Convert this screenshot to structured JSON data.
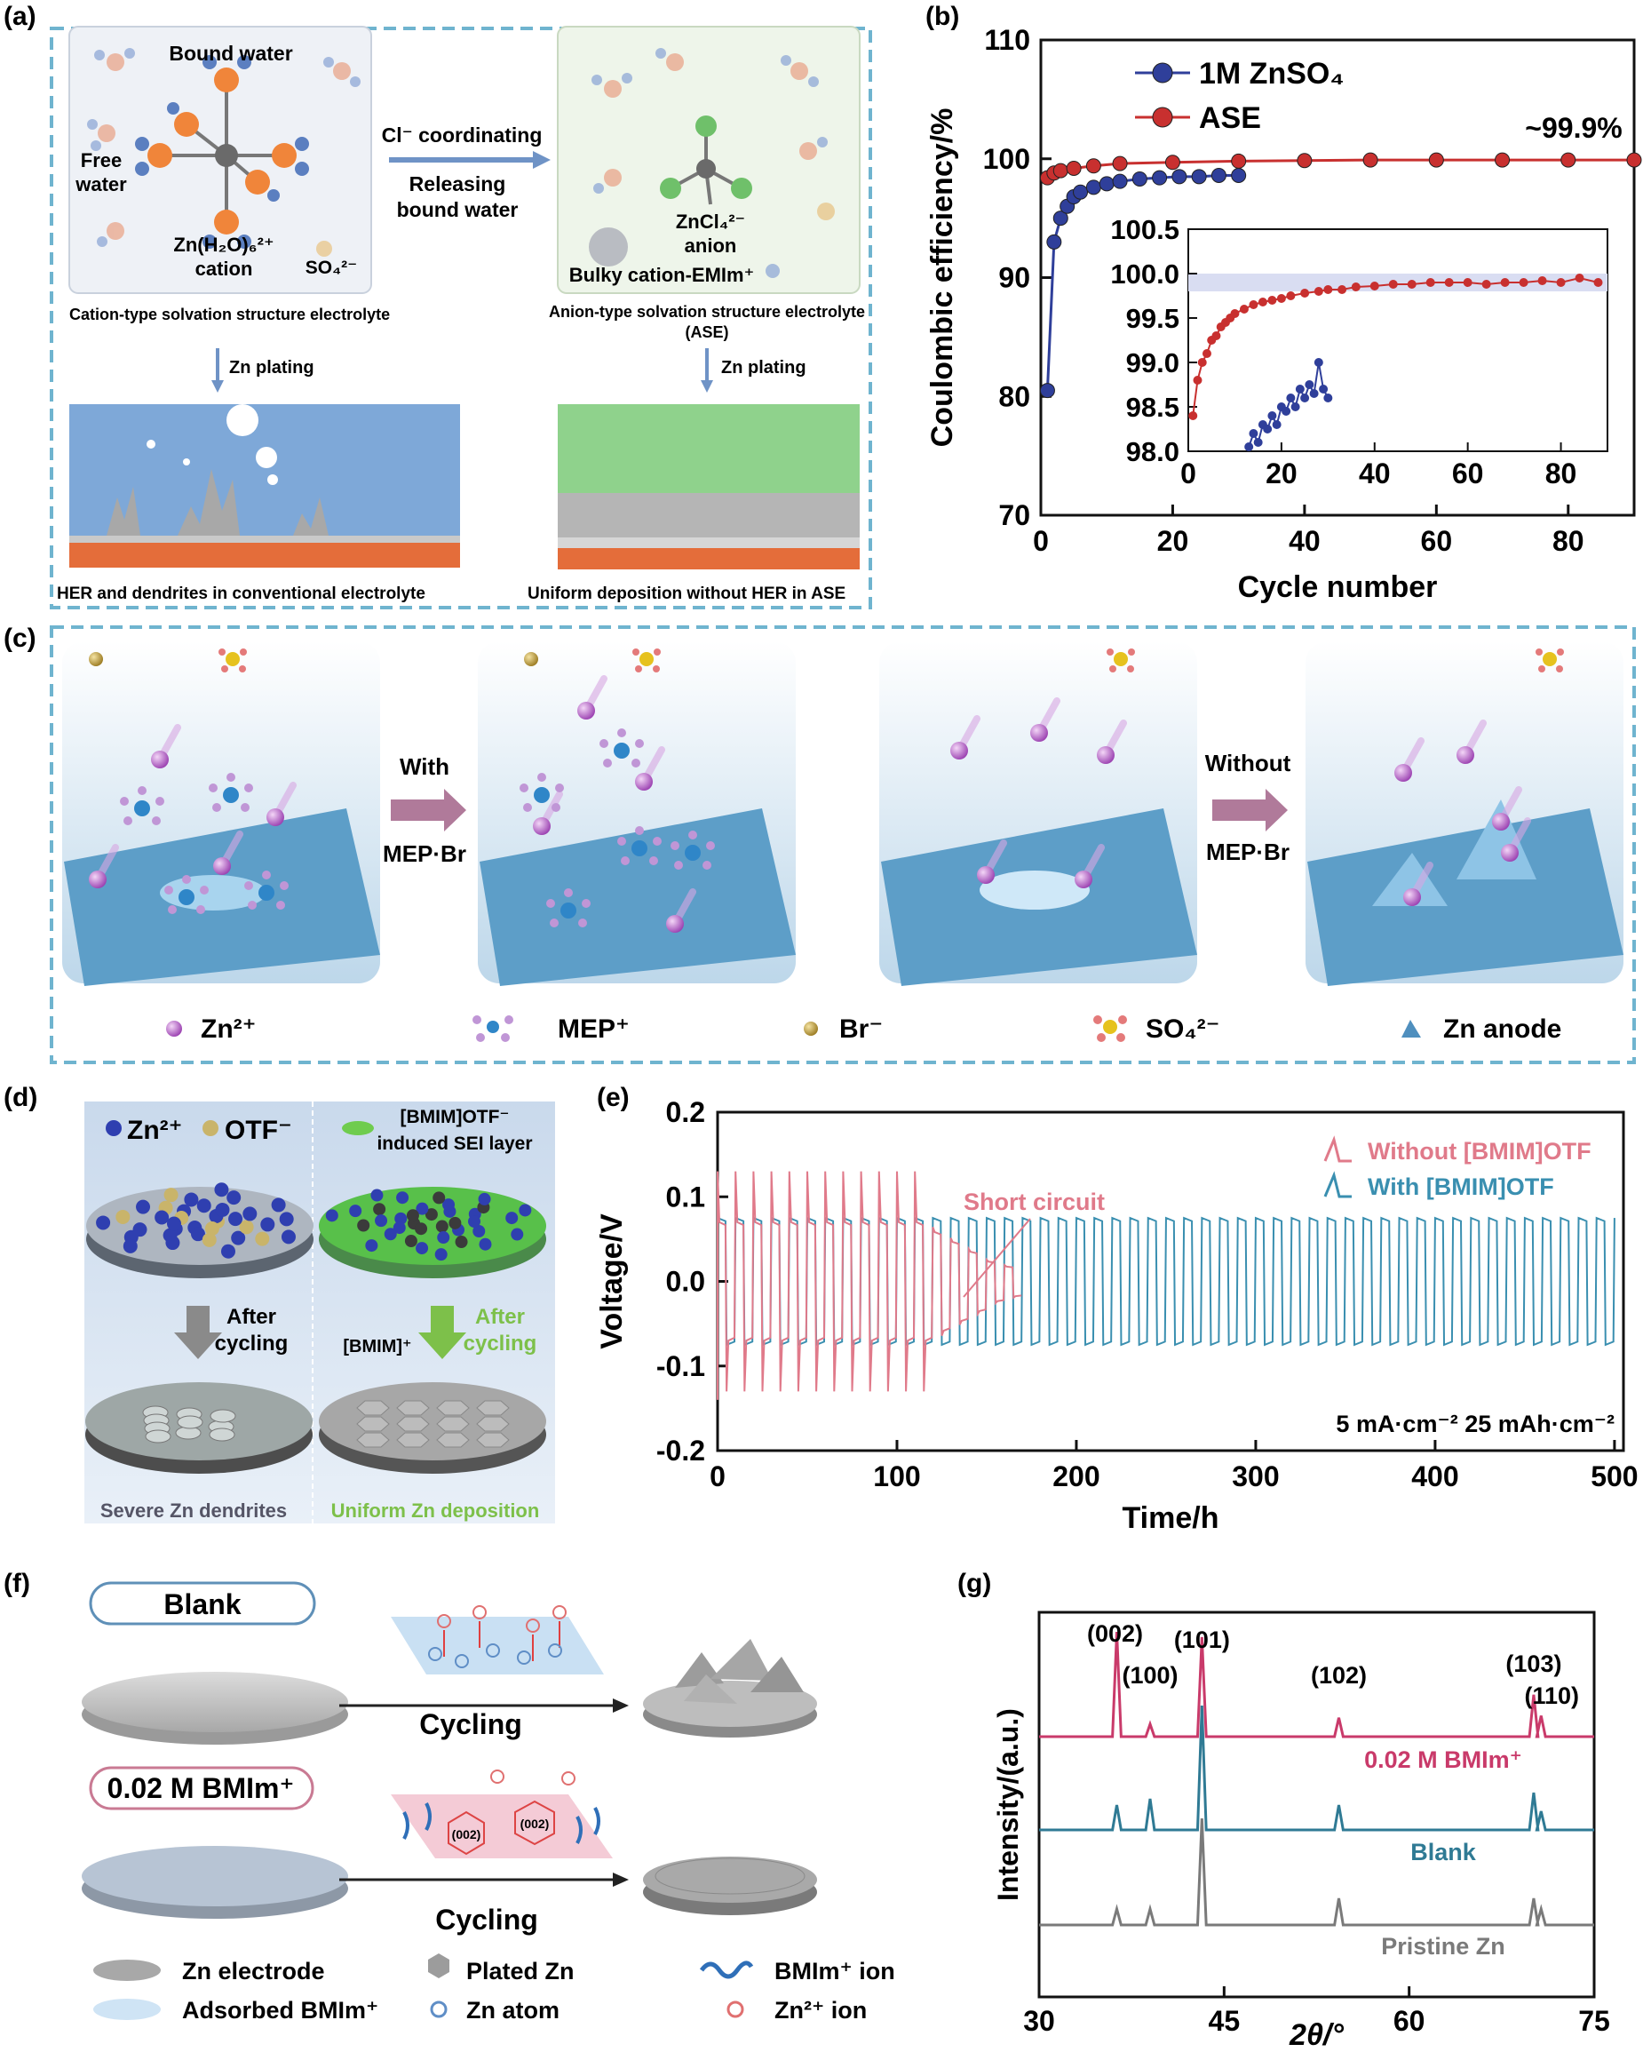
{
  "panel_labels": [
    "(a)",
    "(b)",
    "(c)",
    "(d)",
    "(e)",
    "(f)",
    "(g)"
  ],
  "panel_a": {
    "bound_water": "Bound water",
    "free_water_1": "Free",
    "free_water_2": "water",
    "cation_1": "Zn(H₂O)₆²⁺",
    "cation_2": "cation",
    "so4": "SO₄²⁻",
    "arrow_top": "Cl⁻ coordinating",
    "arrow_bottom_1": "Releasing",
    "arrow_bottom_2": "bound water",
    "zncl4_1": "ZnCl₄²⁻",
    "zncl4_2": "anion",
    "bulky": "Bulky cation-EMIm⁺",
    "left_caption": "Cation-type solvation structure electrolyte",
    "right_caption_1": "Anion-type solvation structure electrolyte",
    "right_caption_2": "(ASE)",
    "plating_left": "Zn plating",
    "plating_right": "Zn plating",
    "bottom_left": "HER and dendrites in conventional electrolyte",
    "bottom_right": "Uniform deposition without HER in ASE"
  },
  "panel_c": {
    "with_1": "With",
    "with_2": "MEP·Br",
    "without_1": "Without",
    "without_2": "MEP·Br",
    "legend": [
      "Zn²⁺",
      "MEP⁺",
      "Br⁻",
      "SO₄²⁻",
      "Zn anode"
    ]
  },
  "panel_d": {
    "zn": "Zn²⁺",
    "otf": "OTF⁻",
    "sei_1": "[BMIM]OTF⁻",
    "sei_2": "induced SEI layer",
    "after_left_1": "After",
    "after_left_2": "cycling",
    "after_right_1": "After",
    "after_right_2": "cycling",
    "bmim": "[BMIM]⁺",
    "bottom_left": "Severe Zn dendrites",
    "bottom_right": "Uniform Zn deposition"
  },
  "panel_f": {
    "blank": "Blank",
    "bmim": "0.02 M BMIm⁺",
    "cycling_1": "Cycling",
    "cycling_2": "Cycling",
    "plane_1": "(002)",
    "plane_2": "(002)",
    "legend": [
      "Zn electrode",
      "Plated Zn",
      "BMIm⁺ ion",
      "Adsorbed BMIm⁺",
      "Zn atom",
      "Zn²⁺ ion"
    ]
  },
  "chart_data": [
    {
      "id": "b",
      "type": "scatter",
      "xlabel": "Cycle number",
      "ylabel": "Coulombic efficiency/%",
      "xlim": [
        0,
        90
      ],
      "ylim": [
        70,
        110
      ],
      "xticks": [
        0,
        20,
        40,
        60,
        80
      ],
      "yticks": [
        70,
        80,
        90,
        100,
        110
      ],
      "annotation": "~99.9%",
      "legend_position": "top-left",
      "series": [
        {
          "name": "1M ZnSO₄",
          "color": "#2f3f9a",
          "x": [
            1,
            2,
            3,
            4,
            5,
            6,
            8,
            10,
            12,
            15,
            18,
            21,
            24,
            27,
            30
          ],
          "y": [
            80.5,
            93.0,
            95.0,
            96.0,
            96.8,
            97.2,
            97.6,
            97.9,
            98.1,
            98.3,
            98.4,
            98.5,
            98.5,
            98.6,
            98.6
          ]
        },
        {
          "name": "ASE",
          "color": "#c8302f",
          "x": [
            1,
            2,
            3,
            5,
            8,
            12,
            20,
            30,
            40,
            50,
            60,
            70,
            80,
            90
          ],
          "y": [
            98.4,
            98.8,
            99.0,
            99.2,
            99.4,
            99.6,
            99.7,
            99.8,
            99.85,
            99.9,
            99.9,
            99.9,
            99.9,
            99.9
          ]
        }
      ],
      "inset": {
        "xlim": [
          0,
          90
        ],
        "ylim": [
          98.0,
          100.5
        ],
        "xticks": [
          0,
          20,
          40,
          60,
          80
        ],
        "yticks": [
          98.0,
          98.5,
          99.0,
          99.5,
          100.0,
          100.5
        ],
        "band": [
          99.8,
          100.0
        ],
        "series": [
          {
            "name": "1M ZnSO₄",
            "color": "#2f3f9a",
            "x": [
              13,
              14,
              15,
              16,
              17,
              18,
              19,
              20,
              21,
              22,
              23,
              24,
              25,
              26,
              27,
              28,
              29,
              30
            ],
            "y": [
              98.05,
              98.2,
              98.1,
              98.3,
              98.25,
              98.4,
              98.3,
              98.5,
              98.45,
              98.6,
              98.5,
              98.7,
              98.6,
              98.75,
              98.65,
              99.0,
              98.7,
              98.6
            ]
          },
          {
            "name": "ASE",
            "color": "#c8302f",
            "x": [
              1,
              2,
              3,
              4,
              5,
              6,
              7,
              8,
              9,
              10,
              12,
              14,
              16,
              18,
              20,
              22,
              25,
              28,
              30,
              33,
              36,
              40,
              44,
              48,
              52,
              56,
              60,
              64,
              68,
              72,
              76,
              80,
              84,
              88
            ],
            "y": [
              98.4,
              98.8,
              99.0,
              99.1,
              99.25,
              99.3,
              99.4,
              99.45,
              99.5,
              99.55,
              99.6,
              99.65,
              99.68,
              99.7,
              99.72,
              99.75,
              99.78,
              99.8,
              99.82,
              99.82,
              99.85,
              99.86,
              99.88,
              99.88,
              99.9,
              99.9,
              99.9,
              99.88,
              99.9,
              99.9,
              99.92,
              99.9,
              99.95,
              99.9
            ]
          }
        ]
      }
    },
    {
      "id": "e",
      "type": "line",
      "xlabel": "Time/h",
      "ylabel": "Voltage/V",
      "xlim": [
        0,
        505
      ],
      "ylim": [
        -0.2,
        0.2
      ],
      "xticks": [
        0,
        100,
        200,
        300,
        400,
        500
      ],
      "yticks": [
        -0.2,
        -0.1,
        0.0,
        0.1,
        0.2
      ],
      "annotation": "Short circuit",
      "conditions": "5 mA·cm⁻²   25 mAh·cm⁻²",
      "legend_position": "top-right",
      "cycle_period_h": 10,
      "series": [
        {
          "name": "Without [BMIM]OTF",
          "color": "#e07a8a",
          "amplitude_V": 0.07,
          "spike_V": 0.13,
          "end_h": 165
        },
        {
          "name": "With [BMIM]OTF",
          "color": "#3a8fb0",
          "amplitude_V": 0.075,
          "end_h": 505
        }
      ]
    },
    {
      "id": "g",
      "type": "line",
      "xlabel": "2θ/°",
      "ylabel": "Intensity/(a.u.)",
      "xlim": [
        30,
        75
      ],
      "xticks": [
        30,
        45,
        60,
        75
      ],
      "peaks_deg": [
        36.3,
        39.0,
        43.2,
        54.3,
        70.1,
        70.7
      ],
      "peak_labels": [
        "(002)",
        "(100)",
        "(101)",
        "(102)",
        "(103)",
        "(110)"
      ],
      "series": [
        {
          "name": "0.02 M BMIm⁺",
          "color": "#c93a6a",
          "intensities": [
            1.0,
            0.12,
            0.95,
            0.18,
            0.4,
            0.2
          ]
        },
        {
          "name": "Blank",
          "color": "#2f7a94",
          "intensities": [
            0.2,
            0.25,
            1.0,
            0.2,
            0.3,
            0.15
          ]
        },
        {
          "name": "Pristine Zn",
          "color": "#7a7a7a",
          "intensities": [
            0.15,
            0.15,
            1.0,
            0.25,
            0.25,
            0.15
          ]
        }
      ]
    }
  ]
}
